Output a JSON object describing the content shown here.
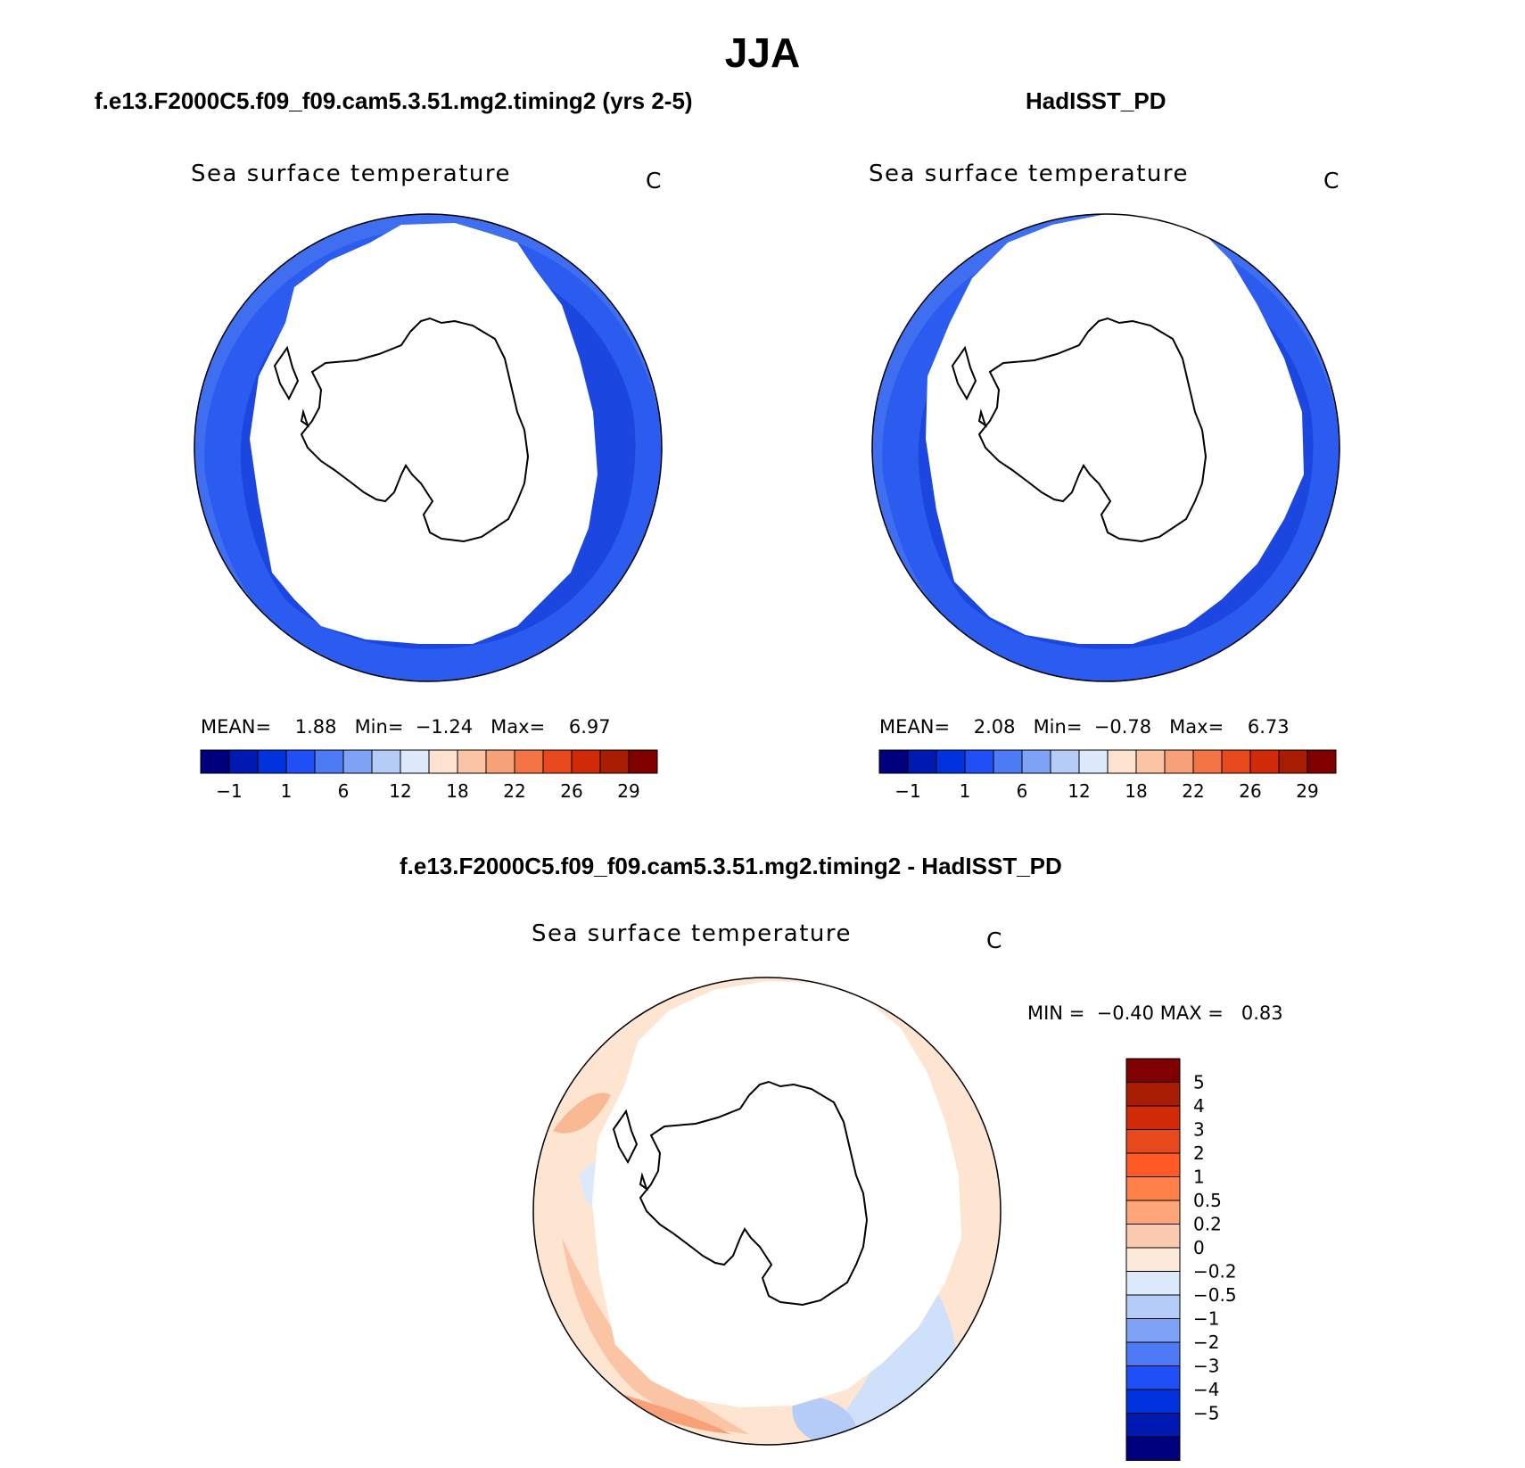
{
  "figure": {
    "title": "JJA"
  },
  "panels": [
    {
      "case_title": "f.e13.F2000C5.f09_f09.cam5.3.51.mg2.timing2 (yrs 2-5)",
      "variable_label": "Sea surface temperature",
      "units": "C",
      "stats": {
        "mean_label": "MEAN=",
        "mean": "1.88",
        "min_label": "Min=",
        "min": "−1.24",
        "max_label": "Max=",
        "max": "6.97"
      }
    },
    {
      "case_title": "HadISST_PD",
      "variable_label": "Sea surface temperature",
      "units": "C",
      "stats": {
        "mean_label": "MEAN=",
        "mean": "2.08",
        "min_label": "Min=",
        "min": "−0.78",
        "max_label": "Max=",
        "max": "6.73"
      }
    }
  ],
  "diff_panel": {
    "case_title": "f.e13.F2000C5.f09_f09.cam5.3.51.mg2.timing2 - HadISST_PD",
    "variable_label": "Sea surface temperature",
    "units": "C",
    "stats": {
      "min_label": "MIN =",
      "min": "−0.40",
      "max_label": "MAX =",
      "max": "0.83"
    }
  },
  "colorbar_fields": {
    "colors": [
      "#00007f",
      "#0019b0",
      "#0033dd",
      "#1f4ff5",
      "#4c7bf5",
      "#7ea2f5",
      "#b5ccf7",
      "#dbe9fb",
      "#fde3cf",
      "#fbc5a5",
      "#f8a178",
      "#f37344",
      "#e8481e",
      "#d02a08",
      "#a81c04",
      "#800000"
    ],
    "tick_labels": [
      "−1",
      "1",
      "6",
      "12",
      "18",
      "22",
      "26",
      "29"
    ]
  },
  "colorbar_diff": {
    "colors_top_to_bottom": [
      "#800000",
      "#a81c04",
      "#d02a08",
      "#e8481e",
      "#ff5a26",
      "#ff8048",
      "#fca679",
      "#fccab0",
      "#fde9da",
      "#dbe9fb",
      "#b5ccf7",
      "#7ea2f5",
      "#4c7bf5",
      "#1f4ff5",
      "#0033dd",
      "#0019b0",
      "#00007f"
    ],
    "tick_labels": [
      "5",
      "4",
      "3",
      "2",
      "1",
      "0.5",
      "0.2",
      "0",
      "−0.2",
      "−0.5",
      "−1",
      "−2",
      "−3",
      "−4",
      "−5"
    ]
  }
}
